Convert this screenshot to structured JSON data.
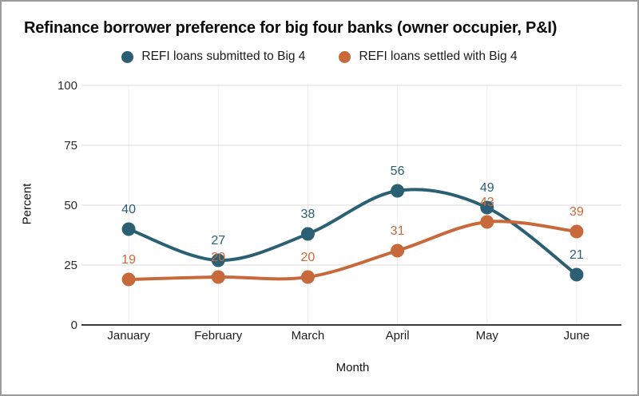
{
  "window": {
    "background_color": "#ffffff",
    "border_color": "#9b9b9b"
  },
  "chart_data": {
    "type": "line",
    "title": "Refinance borrower preference for big four banks (owner occupier, P&I)",
    "xlabel": "Month",
    "ylabel": "Percent",
    "categories": [
      "January",
      "February",
      "March",
      "April",
      "May",
      "June"
    ],
    "series": [
      {
        "name": "REFI loans submitted to Big 4",
        "color": "#2a5f74",
        "values": [
          40,
          27,
          38,
          56,
          49,
          21
        ]
      },
      {
        "name": "REFI loans settled with Big 4",
        "color": "#c7693a",
        "values": [
          19,
          20,
          20,
          31,
          43,
          39
        ]
      }
    ],
    "y_ticks": [
      0,
      25,
      50,
      75,
      100
    ],
    "ylim": [
      0,
      100
    ],
    "grid": true,
    "vertical_guides": true,
    "value_labels": true,
    "legend_position": "top",
    "smooth_lines": true
  },
  "style": {
    "gridline_color": "#d8d8d8",
    "vertical_guide_color": "#ededed",
    "axis_line_color": "#3a3a3a",
    "tick_label_color": "#2b2b2b",
    "category_label_color": "#1e1e1e"
  }
}
